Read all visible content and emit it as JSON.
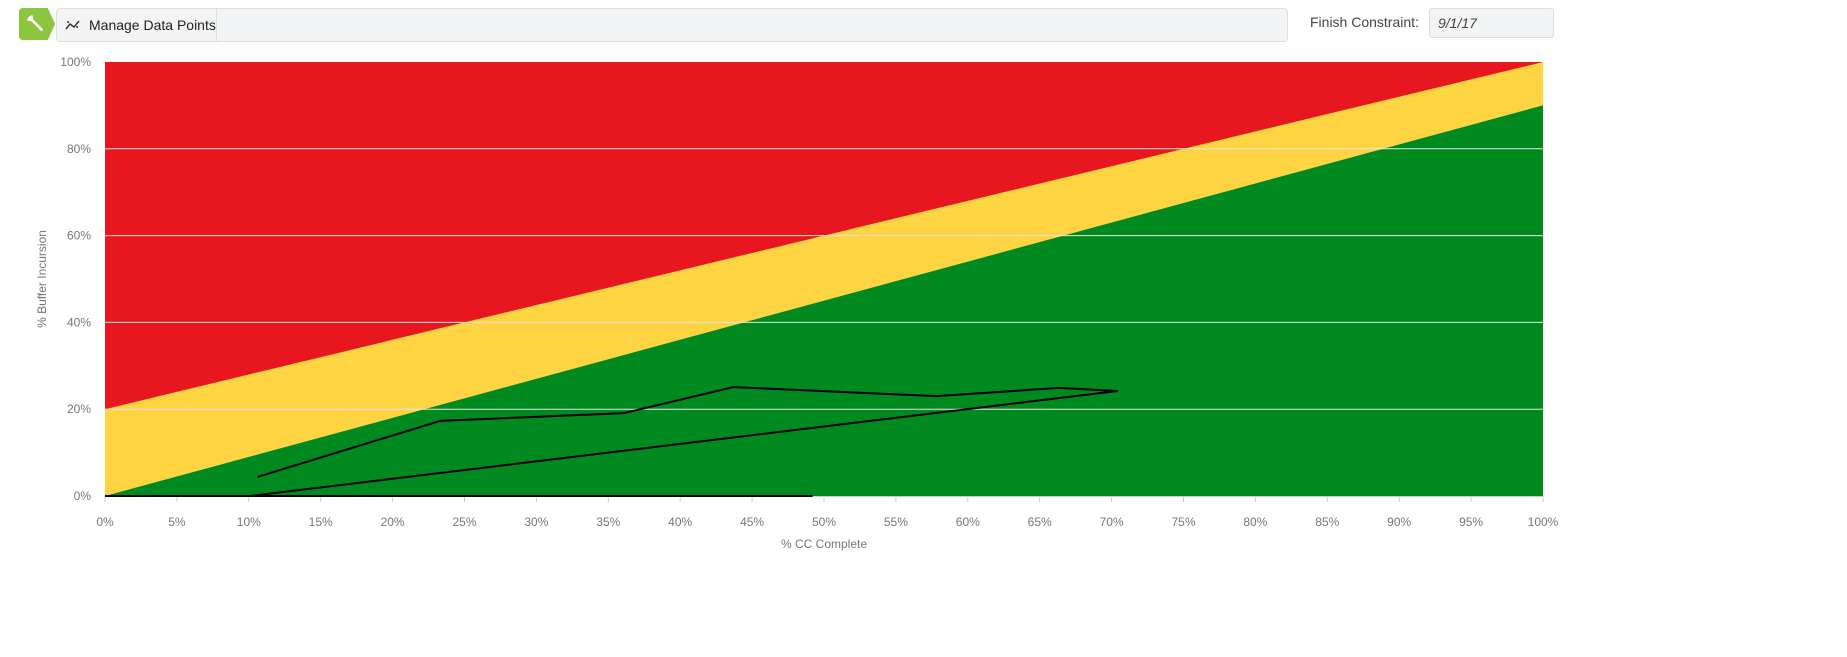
{
  "toolbar": {
    "manage_label": "Manage Data Points",
    "manage_icon": "scatter-line-icon",
    "logo_icon": "wrench-icon",
    "finish_label": "Finish Constraint:",
    "finish_value": "9/1/17"
  },
  "colors": {
    "red": "#e8171f",
    "yellow": "#fed443",
    "green": "#00891e",
    "line": "#000000",
    "logo": "#8cc63f"
  },
  "chart_data": {
    "type": "line",
    "xlabel": "% CC Complete",
    "ylabel": "% Buffer Incursion",
    "xlim": [
      0,
      100
    ],
    "ylim": [
      0,
      100
    ],
    "grid": true,
    "xticks": [
      "0%",
      "5%",
      "10%",
      "15%",
      "20%",
      "25%",
      "30%",
      "35%",
      "40%",
      "45%",
      "50%",
      "55%",
      "60%",
      "65%",
      "70%",
      "75%",
      "80%",
      "85%",
      "90%",
      "95%",
      "100%"
    ],
    "yticks": [
      "0%",
      "20%",
      "40%",
      "60%",
      "80%",
      "100%"
    ],
    "zones": [
      {
        "name": "red",
        "lower": [
          [
            0,
            20
          ],
          [
            100,
            100
          ]
        ]
      },
      {
        "name": "yellow",
        "lower": [
          [
            0,
            0
          ],
          [
            100,
            90
          ]
        ]
      },
      {
        "name": "green",
        "lower": [
          [
            0,
            0
          ],
          [
            100,
            0
          ]
        ]
      }
    ],
    "series": [
      {
        "points": [
          [
            0,
            0
          ],
          [
            49.2,
            0
          ]
        ]
      },
      {
        "points": [
          [
            10.6,
            4.4
          ],
          [
            23.3,
            17.3
          ],
          [
            36.1,
            19.1
          ],
          [
            43.7,
            25.1
          ],
          [
            57.8,
            23.0
          ],
          [
            66.3,
            24.9
          ],
          [
            70.4,
            24.2
          ],
          [
            10.1,
            0
          ]
        ]
      }
    ]
  }
}
